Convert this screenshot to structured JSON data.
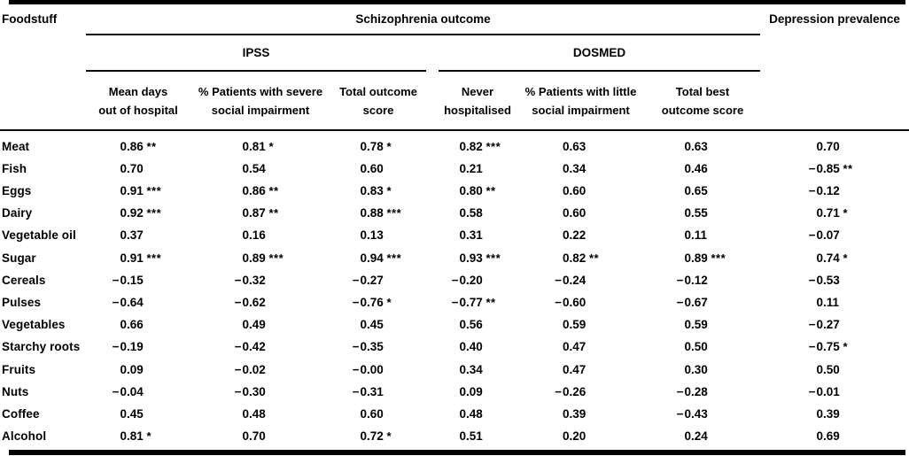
{
  "table": {
    "foodstuff_header": "Foodstuff",
    "group_header": "Schizophrenia outcome",
    "depression_header": "Depression prevalence",
    "subgroups": [
      {
        "label": "IPSS"
      },
      {
        "label": "DOSMED"
      }
    ],
    "columns": [
      {
        "line1": "Mean days",
        "line2": "out of hospital"
      },
      {
        "line1": "% Patients with severe",
        "line2": "social impairment"
      },
      {
        "line1": "Total outcome",
        "line2": "score"
      },
      {
        "line1": "Never",
        "line2": "hospitalised"
      },
      {
        "line1": "% Patients with little",
        "line2": "social impairment"
      },
      {
        "line1": "Total best",
        "line2": "outcome score"
      }
    ],
    "rows": [
      {
        "food": "Meat",
        "values": [
          "0.86**",
          "0.81*",
          "0.78*",
          "0.82***",
          "0.63",
          "0.63",
          "0.70"
        ]
      },
      {
        "food": "Fish",
        "values": [
          "0.70",
          "0.54",
          "0.60",
          "0.21",
          "0.34",
          "0.46",
          "−0.85**"
        ]
      },
      {
        "food": "Eggs",
        "values": [
          "0.91***",
          "0.86**",
          "0.83*",
          "0.80**",
          "0.60",
          "0.65",
          "−0.12"
        ]
      },
      {
        "food": "Dairy",
        "values": [
          "0.92***",
          "0.87**",
          "0.88***",
          "0.58",
          "0.60",
          "0.55",
          "0.71*"
        ]
      },
      {
        "food": "Vegetable oil",
        "values": [
          "0.37",
          "0.16",
          "0.13",
          "0.31",
          "0.22",
          "0.11",
          "−0.07"
        ]
      },
      {
        "food": "Sugar",
        "values": [
          "0.91***",
          "0.89***",
          "0.94***",
          "0.93***",
          "0.82**",
          "0.89***",
          "0.74*"
        ]
      },
      {
        "food": "Cereals",
        "values": [
          "−0.15",
          "−0.32",
          "−0.27",
          "−0.20",
          "−0.24",
          "−0.12",
          "−0.53"
        ]
      },
      {
        "food": "Pulses",
        "values": [
          "−0.64",
          "−0.62",
          "−0.76*",
          "−0.77**",
          "−0.60",
          "−0.67",
          "0.11"
        ]
      },
      {
        "food": "Vegetables",
        "values": [
          "0.66",
          "0.49",
          "0.45",
          "0.56",
          "0.59",
          "0.59",
          "−0.27"
        ]
      },
      {
        "food": "Starchy roots",
        "values": [
          "−0.19",
          "−0.42",
          "−0.35",
          "0.40",
          "0.47",
          "0.50",
          "−0.75*"
        ]
      },
      {
        "food": "Fruits",
        "values": [
          "0.09",
          "−0.02",
          "−0.00",
          "0.34",
          "0.47",
          "0.30",
          "0.50"
        ]
      },
      {
        "food": "Nuts",
        "values": [
          "−0.04",
          "−0.30",
          "−0.31",
          "0.09",
          "−0.26",
          "−0.28",
          "−0.01"
        ]
      },
      {
        "food": "Coffee",
        "values": [
          "0.45",
          "0.48",
          "0.60",
          "0.48",
          "0.39",
          "−0.43",
          "0.39"
        ]
      },
      {
        "food": "Alcohol",
        "values": [
          "0.81*",
          "0.70",
          "0.72*",
          "0.51",
          "0.20",
          "0.24",
          "0.69"
        ]
      }
    ]
  }
}
